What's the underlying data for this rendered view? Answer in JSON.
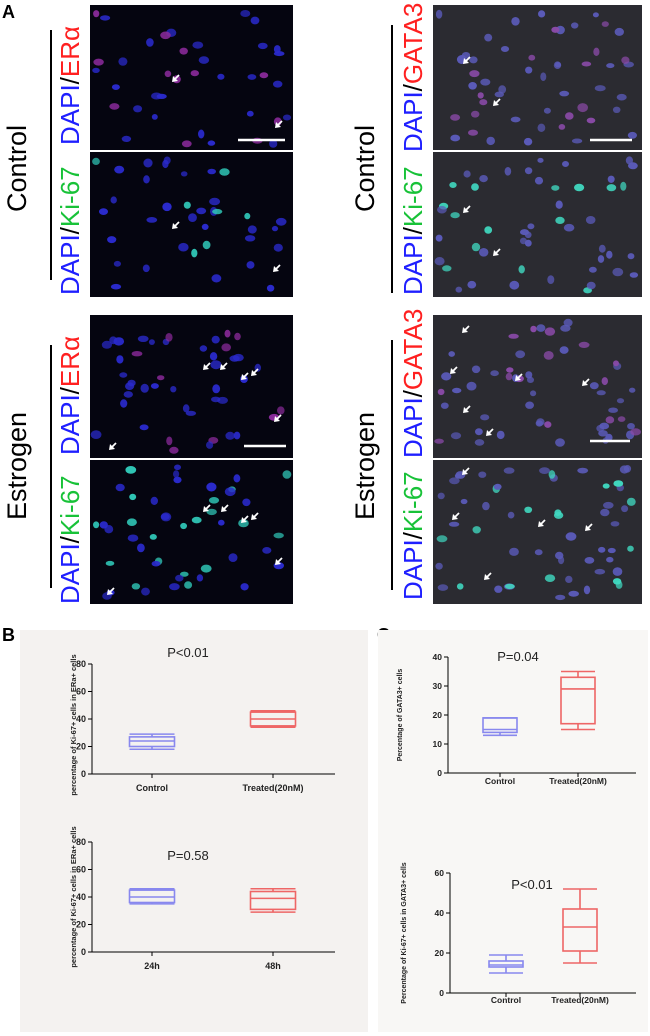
{
  "panel_labels": {
    "a": "A",
    "b": "B",
    "c": "C"
  },
  "micro": {
    "conditions": {
      "control": "Control",
      "estrogen": "Estrogen"
    },
    "stain": {
      "dapi": "DAPI",
      "slash": "/",
      "era": "ERα",
      "gata3": "GATA3",
      "ki67": "Ki-67"
    }
  },
  "colors": {
    "dapi_blue": "#1f1fff",
    "marker_red": "#ff2020",
    "ki67_green": "#18c238",
    "box_control": "#8888ee",
    "box_treated": "#ee6666"
  },
  "chart_data": [
    {
      "type": "box",
      "panel": "B",
      "ylabel": "percentage of Ki-67+ cells in ERa+ cells",
      "ylim": [
        0,
        80
      ],
      "yticks": [
        "0",
        "20",
        "40",
        "60",
        "80"
      ],
      "categories": [
        "Control",
        "Treated(20nM)"
      ],
      "annotation": "P<0.01",
      "boxes": [
        {
          "category": "Control",
          "min": 18,
          "q1": 20,
          "median": 24,
          "q3": 27,
          "max": 29
        },
        {
          "category": "Treated(20nM)",
          "min": 34,
          "q1": 35,
          "median": 40,
          "q3": 45,
          "max": 46
        }
      ]
    },
    {
      "type": "box",
      "panel": "B",
      "ylabel": "percentage of Ki-67+ cells in ERa+ cells",
      "ylim": [
        0,
        80
      ],
      "yticks": [
        "0",
        "20",
        "40",
        "60",
        "80"
      ],
      "categories": [
        "24h",
        "48h"
      ],
      "annotation": "P=0.58",
      "boxes": [
        {
          "category": "24h",
          "min": 35,
          "q1": 36,
          "median": 40,
          "q3": 45,
          "max": 46
        },
        {
          "category": "48h",
          "min": 29,
          "q1": 31,
          "median": 39,
          "q3": 44,
          "max": 46
        }
      ]
    },
    {
      "type": "box",
      "panel": "C",
      "ylabel": "Percentage of GATA3+ cells",
      "ylim": [
        0,
        40
      ],
      "yticks": [
        "0",
        "10",
        "20",
        "30",
        "40"
      ],
      "categories": [
        "Control",
        "Treated(20nM)"
      ],
      "annotation": "P=0.04",
      "boxes": [
        {
          "category": "Control",
          "min": 13,
          "q1": 14,
          "median": 15,
          "q3": 19,
          "max": 19
        },
        {
          "category": "Treated(20nM)",
          "min": 15,
          "q1": 17,
          "median": 29,
          "q3": 33,
          "max": 35
        }
      ]
    },
    {
      "type": "box",
      "panel": "C",
      "ylabel": "Percentage of Ki-67+ cells in GATA3+ cells",
      "ylim": [
        0,
        60
      ],
      "yticks": [
        "0",
        "20",
        "40",
        "60"
      ],
      "categories": [
        "Control",
        "Treated(20nM)"
      ],
      "annotation": "P<0.01",
      "boxes": [
        {
          "category": "Control",
          "min": 10,
          "q1": 13,
          "median": 14,
          "q3": 16,
          "max": 19
        },
        {
          "category": "Treated(20nM)",
          "min": 15,
          "q1": 21,
          "median": 33,
          "q3": 42,
          "max": 52
        }
      ]
    }
  ]
}
